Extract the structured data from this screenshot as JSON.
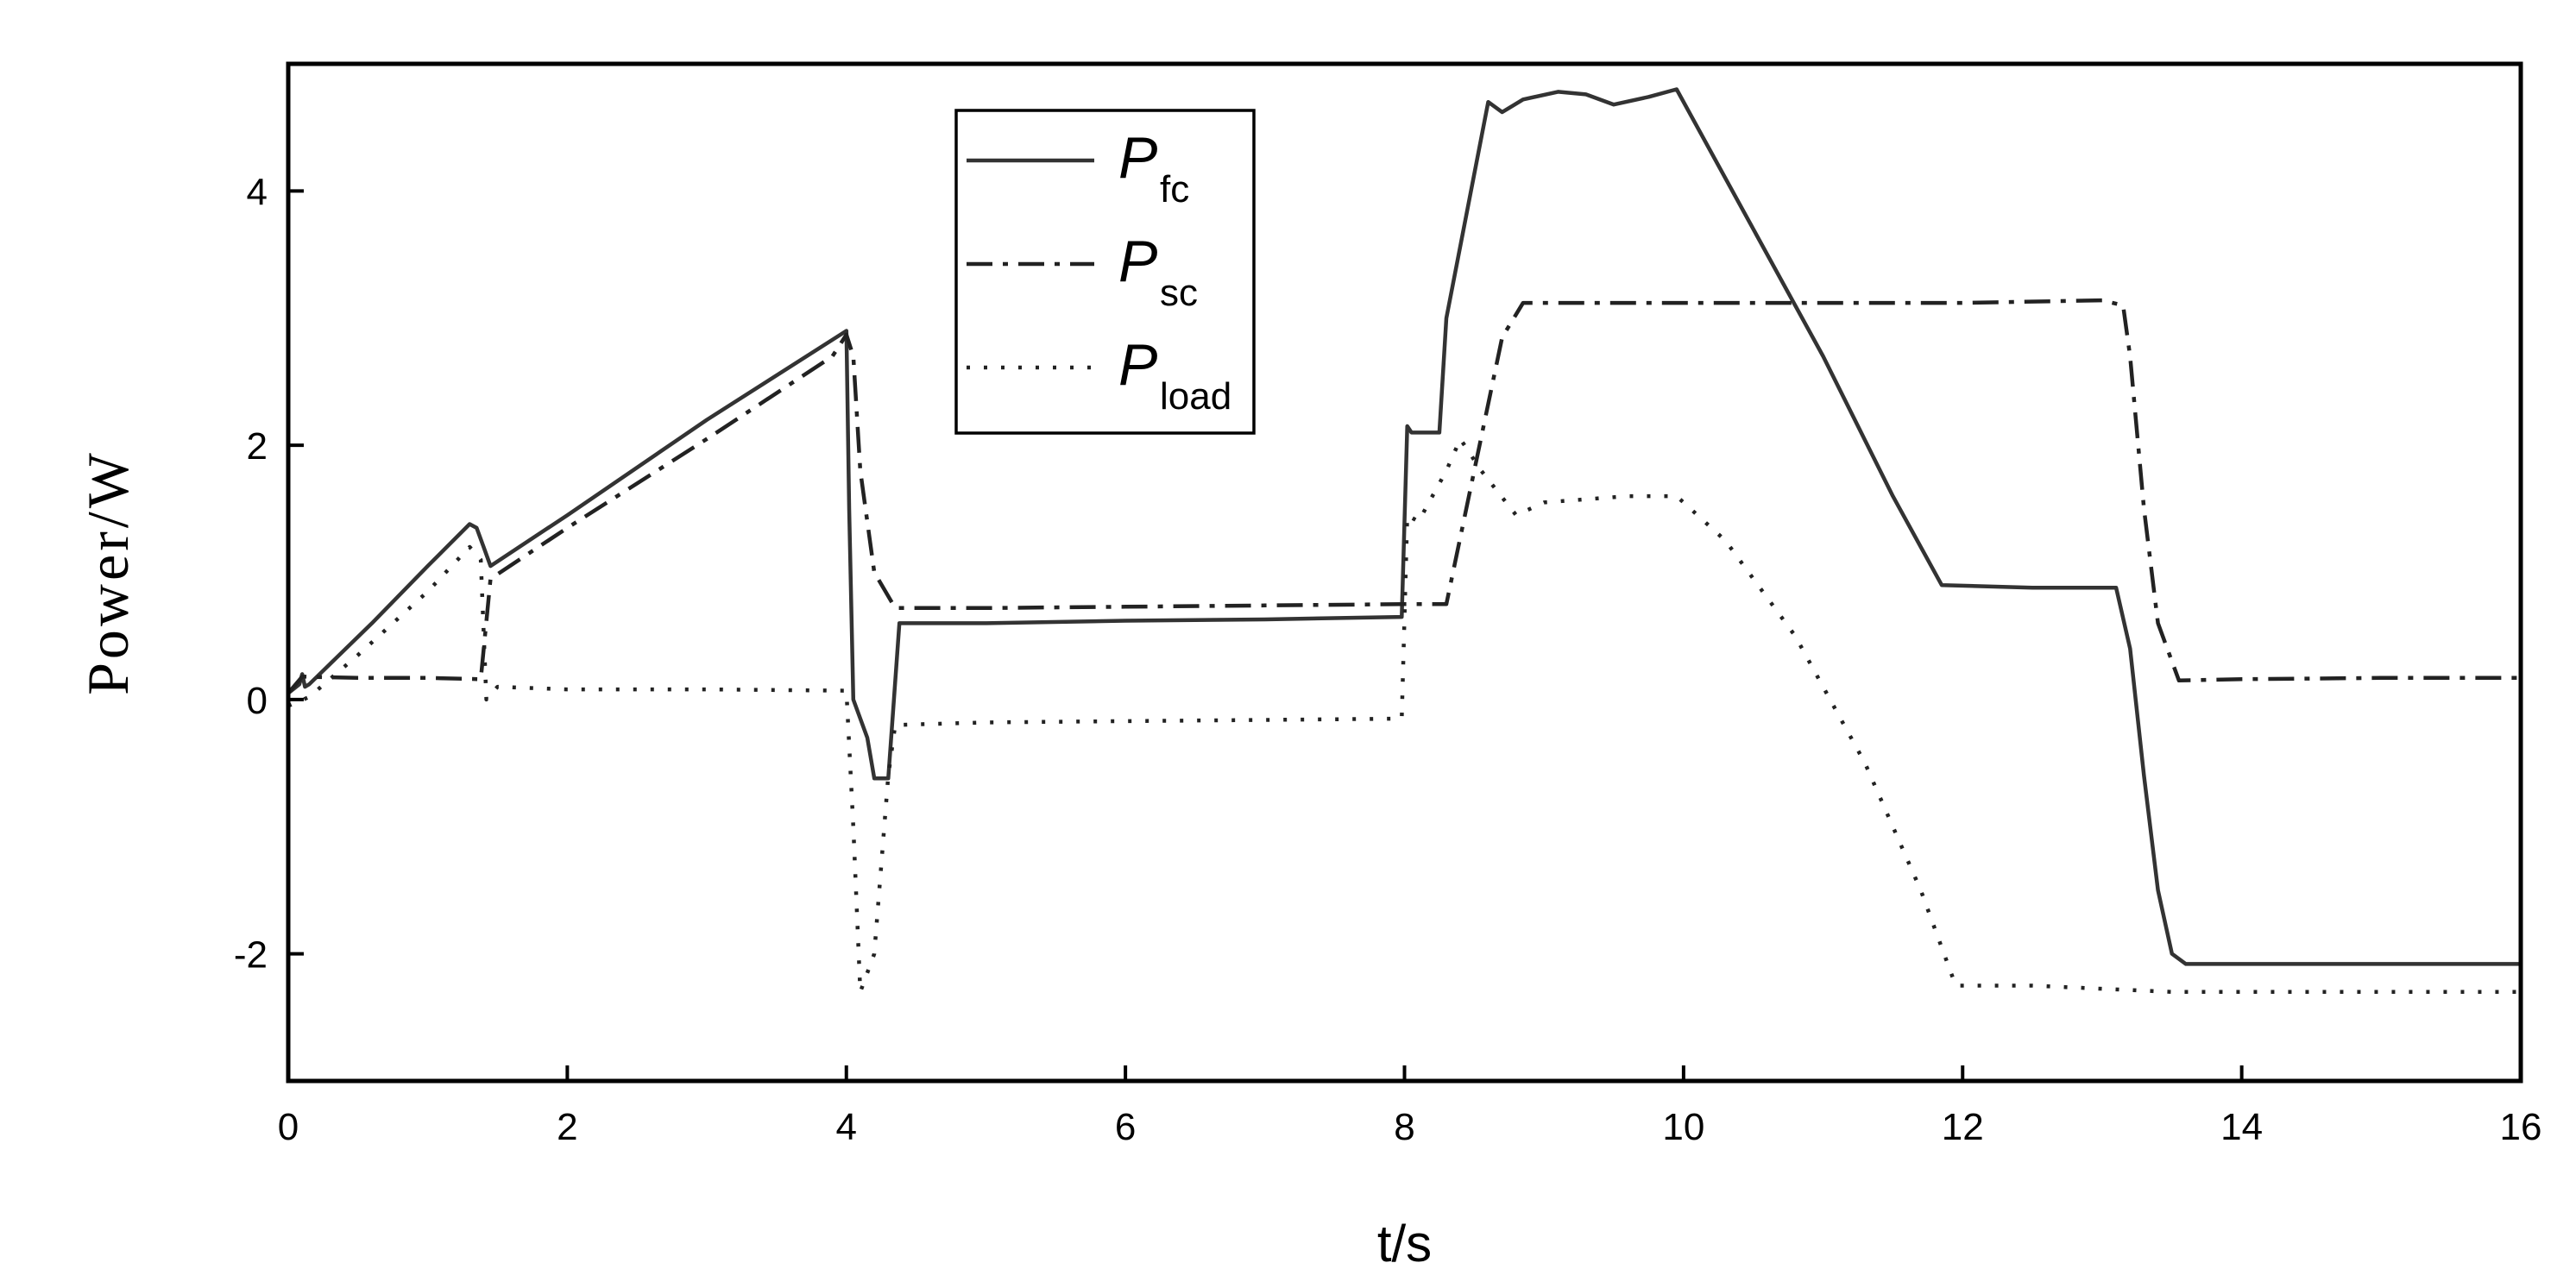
{
  "chart_data": {
    "type": "line",
    "title": "",
    "xlabel": "t/s",
    "ylabel": "Power/W",
    "xlim": [
      0,
      16
    ],
    "ylim": [
      -3,
      5
    ],
    "xticks": [
      0,
      2,
      4,
      6,
      8,
      10,
      12,
      14,
      16
    ],
    "yticks": [
      -2,
      0,
      2,
      4
    ],
    "grid": false,
    "legend_position": "top-center",
    "series": [
      {
        "name": "Pfc",
        "label_main": "P",
        "label_sub": "fc",
        "style": "solid",
        "color": "#333333",
        "points": [
          [
            0,
            0.05
          ],
          [
            0.08,
            0.12
          ],
          [
            0.1,
            0.2
          ],
          [
            0.12,
            0.1
          ],
          [
            0.15,
            0.12
          ],
          [
            0.3,
            0.28
          ],
          [
            0.6,
            0.6
          ],
          [
            1.0,
            1.05
          ],
          [
            1.3,
            1.38
          ],
          [
            1.35,
            1.35
          ],
          [
            1.4,
            1.2
          ],
          [
            1.45,
            1.05
          ],
          [
            2.0,
            1.45
          ],
          [
            3.0,
            2.2
          ],
          [
            4.0,
            2.9
          ],
          [
            4.02,
            1.5
          ],
          [
            4.05,
            0.0
          ],
          [
            4.15,
            -0.3
          ],
          [
            4.2,
            -0.62
          ],
          [
            4.3,
            -0.62
          ],
          [
            4.38,
            0.6
          ],
          [
            5.0,
            0.6
          ],
          [
            6.0,
            0.62
          ],
          [
            7.0,
            0.63
          ],
          [
            7.98,
            0.65
          ],
          [
            8.02,
            2.15
          ],
          [
            8.05,
            2.1
          ],
          [
            8.25,
            2.1
          ],
          [
            8.3,
            3.0
          ],
          [
            8.6,
            4.7
          ],
          [
            8.7,
            4.62
          ],
          [
            8.85,
            4.72
          ],
          [
            9.1,
            4.78
          ],
          [
            9.3,
            4.76
          ],
          [
            9.5,
            4.68
          ],
          [
            9.75,
            4.74
          ],
          [
            9.95,
            4.8
          ],
          [
            10.5,
            3.7
          ],
          [
            11.0,
            2.7
          ],
          [
            11.5,
            1.6
          ],
          [
            11.85,
            0.9
          ],
          [
            12.5,
            0.88
          ],
          [
            13.1,
            0.88
          ],
          [
            13.2,
            0.4
          ],
          [
            13.3,
            -0.6
          ],
          [
            13.4,
            -1.5
          ],
          [
            13.5,
            -2.0
          ],
          [
            13.6,
            -2.08
          ],
          [
            14.5,
            -2.08
          ],
          [
            16.0,
            -2.08
          ]
        ]
      },
      {
        "name": "Psc",
        "label_main": "P",
        "label_sub": "sc",
        "style": "dashdot",
        "color": "#222222",
        "points": [
          [
            0,
            0.05
          ],
          [
            0.1,
            0.18
          ],
          [
            0.5,
            0.17
          ],
          [
            1.0,
            0.17
          ],
          [
            1.38,
            0.16
          ],
          [
            1.45,
            0.95
          ],
          [
            2.0,
            1.35
          ],
          [
            3.0,
            2.05
          ],
          [
            3.9,
            2.7
          ],
          [
            4.0,
            2.87
          ],
          [
            4.05,
            2.7
          ],
          [
            4.1,
            1.8
          ],
          [
            4.2,
            1.0
          ],
          [
            4.35,
            0.72
          ],
          [
            5.0,
            0.72
          ],
          [
            6.0,
            0.73
          ],
          [
            7.0,
            0.74
          ],
          [
            8.0,
            0.75
          ],
          [
            8.3,
            0.75
          ],
          [
            8.5,
            1.8
          ],
          [
            8.7,
            2.85
          ],
          [
            8.85,
            3.12
          ],
          [
            10.0,
            3.12
          ],
          [
            11.0,
            3.12
          ],
          [
            12.0,
            3.12
          ],
          [
            13.0,
            3.14
          ],
          [
            13.15,
            3.1
          ],
          [
            13.2,
            2.7
          ],
          [
            13.3,
            1.5
          ],
          [
            13.4,
            0.6
          ],
          [
            13.55,
            0.15
          ],
          [
            14.0,
            0.16
          ],
          [
            15.0,
            0.17
          ],
          [
            16.0,
            0.17
          ]
        ]
      },
      {
        "name": "Pload",
        "label_main": "P",
        "label_sub": "load",
        "style": "dotted",
        "color": "#222222",
        "points": [
          [
            0,
            -0.05
          ],
          [
            0.15,
            0.02
          ],
          [
            0.5,
            0.35
          ],
          [
            1.0,
            0.85
          ],
          [
            1.3,
            1.2
          ],
          [
            1.38,
            1.1
          ],
          [
            1.42,
            0.0
          ],
          [
            1.5,
            0.1
          ],
          [
            2.0,
            0.08
          ],
          [
            3.0,
            0.08
          ],
          [
            4.0,
            0.07
          ],
          [
            4.05,
            -1.0
          ],
          [
            4.1,
            -2.3
          ],
          [
            4.2,
            -2.0
          ],
          [
            4.3,
            -0.6
          ],
          [
            4.35,
            -0.2
          ],
          [
            5.0,
            -0.18
          ],
          [
            6.0,
            -0.17
          ],
          [
            7.0,
            -0.16
          ],
          [
            7.98,
            -0.15
          ],
          [
            8.02,
            1.45
          ],
          [
            8.1,
            1.4
          ],
          [
            8.3,
            1.8
          ],
          [
            8.4,
            2.05
          ],
          [
            8.55,
            1.8
          ],
          [
            8.8,
            1.45
          ],
          [
            9.0,
            1.55
          ],
          [
            9.6,
            1.6
          ],
          [
            9.95,
            1.6
          ],
          [
            10.3,
            1.25
          ],
          [
            10.8,
            0.5
          ],
          [
            11.3,
            -0.5
          ],
          [
            11.7,
            -1.5
          ],
          [
            11.95,
            -2.25
          ],
          [
            12.5,
            -2.25
          ],
          [
            13.5,
            -2.3
          ],
          [
            14.5,
            -2.3
          ],
          [
            16.0,
            -2.3
          ]
        ]
      }
    ]
  }
}
